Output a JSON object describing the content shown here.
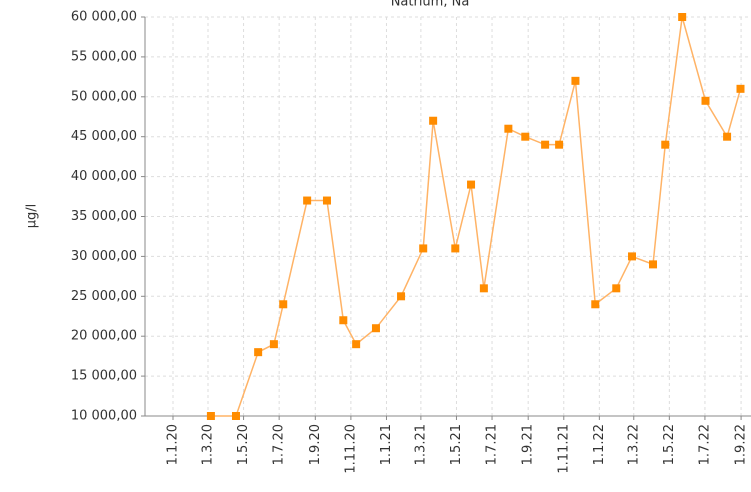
{
  "chart_data": {
    "type": "line",
    "title": "Natrium, Na",
    "ylabel": "µg/l",
    "x": [
      "2020-03-06",
      "2020-04-18",
      "2020-05-26",
      "2020-06-22",
      "2020-07-08",
      "2020-08-18",
      "2020-09-21",
      "2020-10-19",
      "2020-11-10",
      "2020-12-14",
      "2021-01-26",
      "2021-03-05",
      "2021-03-22",
      "2021-04-29",
      "2021-05-26",
      "2021-06-17",
      "2021-07-29",
      "2021-08-27",
      "2021-09-30",
      "2021-10-24",
      "2021-11-21",
      "2021-12-25",
      "2022-01-30",
      "2022-02-26",
      "2022-04-03",
      "2022-04-24",
      "2022-05-23",
      "2022-07-02",
      "2022-08-08",
      "2022-08-31"
    ],
    "series": [
      {
        "name": "Natrium, Na",
        "color": "#ff8c00",
        "line_color": "#ffb366",
        "values": [
          10000,
          10000,
          18000,
          19000,
          24000,
          37000,
          37000,
          22000,
          19000,
          21000,
          25000,
          31000,
          47000,
          31000,
          39000,
          26000,
          46000,
          45000,
          44000,
          44000,
          52000,
          24000,
          26000,
          30000,
          29000,
          44000,
          60000,
          49500,
          45000,
          51000
        ]
      }
    ],
    "xlim": [
      "2019-11-14",
      "2022-09-18"
    ],
    "xticks": [
      {
        "value": "2020-01-01",
        "label": "1.1.20"
      },
      {
        "value": "2020-03-01",
        "label": "1.3.20"
      },
      {
        "value": "2020-05-01",
        "label": "1.5.20"
      },
      {
        "value": "2020-07-01",
        "label": "1.7.20"
      },
      {
        "value": "2020-09-01",
        "label": "1.9.20"
      },
      {
        "value": "2020-11-01",
        "label": "1.11.20"
      },
      {
        "value": "2021-01-01",
        "label": "1.1.21"
      },
      {
        "value": "2021-03-01",
        "label": "1.3.21"
      },
      {
        "value": "2021-05-01",
        "label": "1.5.21"
      },
      {
        "value": "2021-07-01",
        "label": "1.7.21"
      },
      {
        "value": "2021-09-01",
        "label": "1.9.21"
      },
      {
        "value": "2021-11-01",
        "label": "1.11.21"
      },
      {
        "value": "2022-01-01",
        "label": "1.1.22"
      },
      {
        "value": "2022-03-01",
        "label": "1.3.22"
      },
      {
        "value": "2022-05-01",
        "label": "1.5.22"
      },
      {
        "value": "2022-07-01",
        "label": "1.7.22"
      },
      {
        "value": "2022-09-01",
        "label": "1.9.22"
      }
    ],
    "ylim": [
      10000,
      60000
    ],
    "yticks": [
      {
        "value": 10000,
        "label": "10 000,00"
      },
      {
        "value": 15000,
        "label": "15 000,00"
      },
      {
        "value": 20000,
        "label": "20 000,00"
      },
      {
        "value": 25000,
        "label": "25 000,00"
      },
      {
        "value": 30000,
        "label": "30 000,00"
      },
      {
        "value": 35000,
        "label": "35 000,00"
      },
      {
        "value": 40000,
        "label": "40 000,00"
      },
      {
        "value": 45000,
        "label": "45 000,00"
      },
      {
        "value": 50000,
        "label": "50 000,00"
      },
      {
        "value": 55000,
        "label": "55 000,00"
      },
      {
        "value": 60000,
        "label": "60 000,00"
      }
    ],
    "grid": true
  }
}
